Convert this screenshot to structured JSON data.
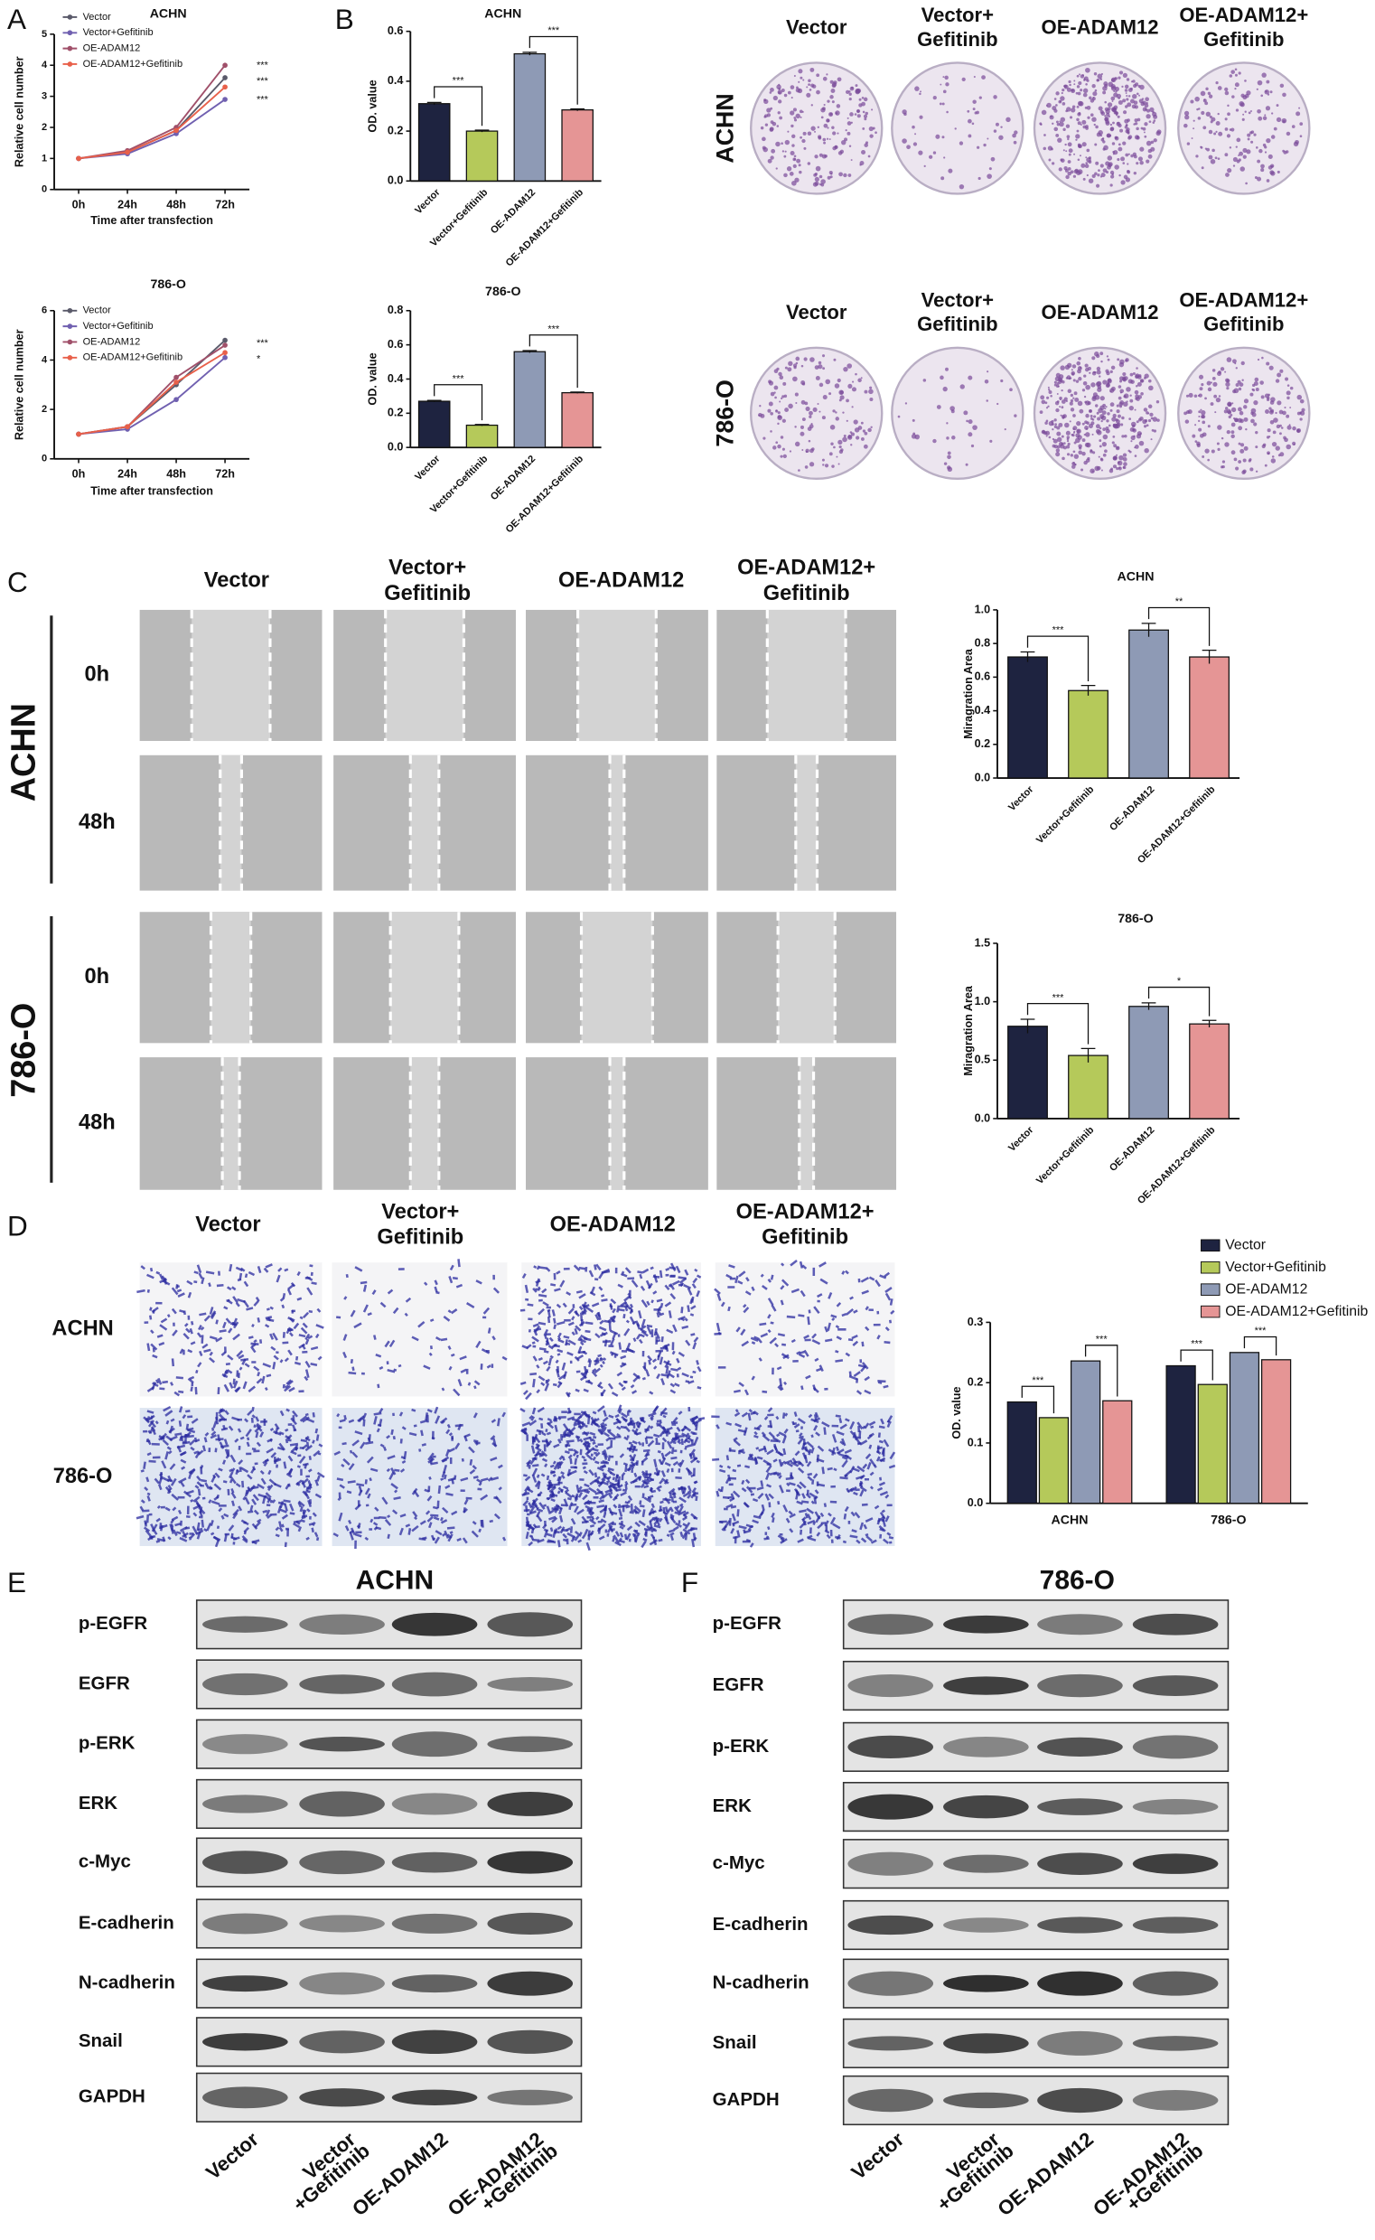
{
  "chart_data": [
    {
      "type": "line",
      "title": "ACHN",
      "ylabel": "Relative cell number",
      "xlabel": "Time after transfection",
      "categories": [
        "0h",
        "24h",
        "48h",
        "72h"
      ],
      "series": [
        {
          "name": "Vector",
          "color": "#5a5a6a",
          "values": [
            1,
            1.2,
            1.9,
            3.6
          ]
        },
        {
          "name": "Vector+Gefitinib",
          "color": "#7060b0",
          "values": [
            1,
            1.15,
            1.8,
            2.9
          ]
        },
        {
          "name": "OE-ADAM12",
          "color": "#a0506a",
          "values": [
            1,
            1.25,
            2.0,
            4.0
          ]
        },
        {
          "name": "OE-ADAM12+Gefitinib",
          "color": "#e8604a",
          "values": [
            1,
            1.2,
            1.9,
            3.3
          ]
        }
      ],
      "ylim": [
        0,
        5
      ],
      "yticks": [
        0,
        1,
        2,
        3,
        4,
        5
      ],
      "annotations": [
        "***",
        "***",
        "***"
      ]
    },
    {
      "type": "line",
      "title": "786-O",
      "ylabel": "Relative cell number",
      "xlabel": "Time after transfection",
      "categories": [
        "0h",
        "24h",
        "48h",
        "72h"
      ],
      "series": [
        {
          "name": "Vector",
          "color": "#5a5a6a",
          "values": [
            1,
            1.3,
            3.0,
            4.8
          ]
        },
        {
          "name": "Vector+Gefitinib",
          "color": "#7060b0",
          "values": [
            1,
            1.2,
            2.4,
            4.1
          ]
        },
        {
          "name": "OE-ADAM12",
          "color": "#a0506a",
          "values": [
            1,
            1.3,
            3.3,
            4.6
          ]
        },
        {
          "name": "OE-ADAM12+Gefitinib",
          "color": "#e8604a",
          "values": [
            1,
            1.3,
            3.1,
            4.3
          ]
        }
      ],
      "ylim": [
        0,
        6
      ],
      "yticks": [
        0,
        2,
        4,
        6
      ],
      "annotations": [
        "***",
        "*"
      ]
    },
    {
      "type": "bar",
      "title": "ACHN",
      "ylabel": "OD. value",
      "categories": [
        "Vector",
        "Vector+Gefitinib",
        "OE-ADAM12",
        "OE-ADAM12+Gefitinib"
      ],
      "values": [
        0.31,
        0.2,
        0.51,
        0.285
      ],
      "errors": [
        0.005,
        0.004,
        0.006,
        0.004
      ],
      "colors": [
        "#1e2340",
        "#b5c95a",
        "#8e9ab5",
        "#e59595"
      ],
      "ylim": [
        0,
        0.6
      ],
      "yticks": [
        {
          "value": 0,
          "label": "0.0"
        },
        {
          "value": 0.2,
          "label": "0.2"
        },
        {
          "value": 0.4,
          "label": "0.4"
        },
        {
          "value": 0.6,
          "label": "0.6"
        }
      ],
      "annotations": [
        "***",
        "***"
      ]
    },
    {
      "type": "bar",
      "title": "786-O",
      "ylabel": "OD. value",
      "categories": [
        "Vector",
        "Vector+Gefitinib",
        "OE-ADAM12",
        "OE-ADAM12+Gefitinib"
      ],
      "values": [
        0.27,
        0.13,
        0.56,
        0.32
      ],
      "errors": [
        0.005,
        0.004,
        0.006,
        0.004
      ],
      "colors": [
        "#1e2340",
        "#b5c95a",
        "#8e9ab5",
        "#e59595"
      ],
      "ylim": [
        0,
        0.8
      ],
      "yticks": [
        {
          "value": 0,
          "label": "0.0"
        },
        {
          "value": 0.2,
          "label": "0.2"
        },
        {
          "value": 0.4,
          "label": "0.4"
        },
        {
          "value": 0.6,
          "label": "0.6"
        },
        {
          "value": 0.8,
          "label": "0.8"
        }
      ],
      "annotations": [
        "***",
        "***"
      ]
    },
    {
      "type": "bar",
      "title": "ACHN",
      "ylabel": "Miragration Area",
      "categories": [
        "Vector",
        "Vector+Gefitinib",
        "OE-ADAM12",
        "OE-ADAM12+Gefitinib"
      ],
      "values": [
        0.72,
        0.52,
        0.88,
        0.72
      ],
      "errors": [
        0.03,
        0.03,
        0.04,
        0.04
      ],
      "colors": [
        "#1e2340",
        "#b5c95a",
        "#8e9ab5",
        "#e59595"
      ],
      "ylim": [
        0,
        1.0
      ],
      "yticks": [
        {
          "value": 0,
          "label": "0.0"
        },
        {
          "value": 0.2,
          "label": "0.2"
        },
        {
          "value": 0.4,
          "label": "0.4"
        },
        {
          "value": 0.6,
          "label": "0.6"
        },
        {
          "value": 0.8,
          "label": "0.8"
        },
        {
          "value": 1.0,
          "label": "1.0"
        }
      ],
      "annotations": [
        "***",
        "**"
      ]
    },
    {
      "type": "bar",
      "title": "786-O",
      "ylabel": "Miragration Area",
      "categories": [
        "Vector",
        "Vector+Gefitinib",
        "OE-ADAM12",
        "OE-ADAM12+Gefitinib"
      ],
      "values": [
        0.79,
        0.54,
        0.96,
        0.81
      ],
      "errors": [
        0.06,
        0.06,
        0.03,
        0.03
      ],
      "colors": [
        "#1e2340",
        "#b5c95a",
        "#8e9ab5",
        "#e59595"
      ],
      "ylim": [
        0,
        1.5
      ],
      "yticks": [
        {
          "value": 0,
          "label": "0.0"
        },
        {
          "value": 0.5,
          "label": "0.5"
        },
        {
          "value": 1.0,
          "label": "1.0"
        },
        {
          "value": 1.5,
          "label": "1.5"
        }
      ],
      "annotations": [
        "***",
        "*"
      ]
    },
    {
      "type": "grouped_bar",
      "ylabel": "OD. value",
      "categories": [
        "ACHN",
        "786-O"
      ],
      "series": [
        {
          "name": "Vector",
          "color": "#1e2340",
          "values": [
            0.168,
            0.228
          ]
        },
        {
          "name": "Vector+Gefitinib",
          "color": "#b5c95a",
          "values": [
            0.142,
            0.197
          ]
        },
        {
          "name": "OE-ADAM12",
          "color": "#8e9ab5",
          "values": [
            0.236,
            0.25
          ]
        },
        {
          "name": "OE-ADAM12+Gefitinib",
          "color": "#e59595",
          "values": [
            0.17,
            0.238
          ]
        }
      ],
      "ylim": [
        0,
        0.3
      ],
      "yticks": [
        {
          "value": 0,
          "label": "0.0"
        },
        {
          "value": 0.1,
          "label": "0.1"
        },
        {
          "value": 0.2,
          "label": "0.2"
        },
        {
          "value": 0.3,
          "label": "0.3"
        }
      ],
      "legend": "top-right",
      "annotations": [
        "***",
        "***",
        "***",
        "***"
      ]
    }
  ],
  "panel_labels": [
    "A",
    "B",
    "C",
    "D",
    "E",
    "F"
  ],
  "colony": {
    "columns": [
      [
        "Vector"
      ],
      [
        "Vector+",
        "Gefitinib"
      ],
      [
        "OE-ADAM12"
      ],
      [
        "OE-ADAM12+",
        "Gefitinib"
      ]
    ],
    "rows": [
      "ACHN",
      "786-O"
    ]
  },
  "wound": {
    "columns": [
      [
        "Vector"
      ],
      [
        "Vector+",
        "Gefitinib"
      ],
      [
        "OE-ADAM12"
      ],
      [
        "OE-ADAM12+",
        "Gefitinib"
      ]
    ],
    "groups": [
      {
        "name": "ACHN",
        "times": [
          "0h",
          "48h"
        ]
      },
      {
        "name": "786-O",
        "times": [
          "0h",
          "48h"
        ]
      }
    ]
  },
  "transwell": {
    "columns": [
      [
        "Vector"
      ],
      [
        "Vector+",
        "Gefitinib"
      ],
      [
        "OE-ADAM12"
      ],
      [
        "OE-ADAM12+",
        "Gefitinib"
      ]
    ],
    "rows": [
      "ACHN",
      "786-O"
    ]
  },
  "western": [
    {
      "title": "ACHN",
      "proteins": [
        "p-EGFR",
        "EGFR",
        "p-ERK",
        "ERK",
        "c-Myc",
        "E-cadherin",
        "N-cadherin",
        "Snail",
        "GAPDH"
      ]
    },
    {
      "title": "786-O",
      "proteins": [
        "p-EGFR",
        "EGFR",
        "p-ERK",
        "ERK",
        "c-Myc",
        "E-cadherin",
        "N-cadherin",
        "Snail",
        "GAPDH"
      ]
    }
  ],
  "western_lanes": [
    [
      "Vector"
    ],
    [
      "Vector",
      "+Gefitinib"
    ],
    [
      "OE-ADAM12"
    ],
    [
      "OE-ADAM12",
      "+Gefitinib"
    ]
  ]
}
